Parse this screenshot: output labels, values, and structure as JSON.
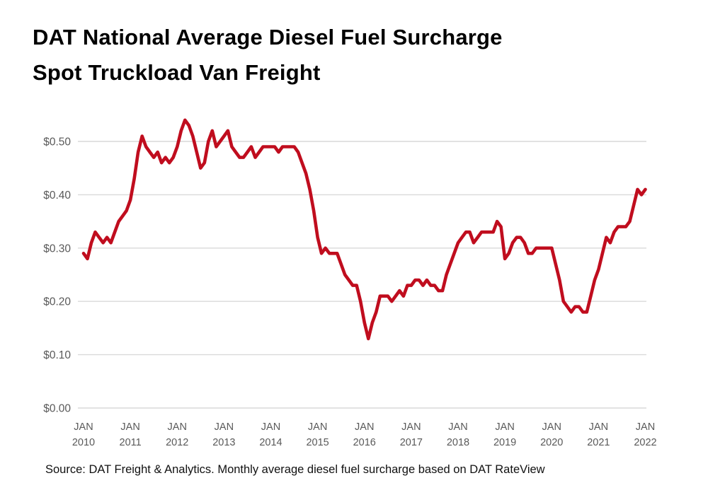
{
  "title": {
    "line1": "DAT National Average Diesel Fuel Surcharge",
    "line2": "Spot Truckload Van Freight"
  },
  "source_note": "Source: DAT Freight & Analytics. Monthly average diesel fuel surcharge based on DAT RateView",
  "colors": {
    "line": "#c00d1e",
    "grid": "#d9d9d9",
    "axis_text": "#595959",
    "title_text": "#000000",
    "background": "#ffffff"
  },
  "chart_data": {
    "type": "line",
    "title": "DAT National Average Diesel Fuel Surcharge Spot Truckload Van Freight",
    "xlabel": "",
    "ylabel": "",
    "grid": true,
    "legend": "none",
    "ylim": [
      0.0,
      0.55
    ],
    "y_ticks": [
      0.0,
      0.1,
      0.2,
      0.3,
      0.4,
      0.5
    ],
    "y_tick_labels": [
      "$0.00",
      "$0.10",
      "$0.20",
      "$0.30",
      "$0.40",
      "$0.50"
    ],
    "x_tick_month_label": "JAN",
    "x_tick_years": [
      "2010",
      "2011",
      "2012",
      "2013",
      "2014",
      "2015",
      "2016",
      "2017",
      "2018",
      "2019",
      "2020",
      "2021",
      "2022"
    ],
    "x_range": [
      "JAN 2010",
      "JAN 2022"
    ],
    "frequency": "monthly",
    "values_monthly": [
      0.29,
      0.28,
      0.31,
      0.33,
      0.32,
      0.31,
      0.32,
      0.31,
      0.33,
      0.35,
      0.36,
      0.37,
      0.39,
      0.43,
      0.48,
      0.51,
      0.49,
      0.48,
      0.47,
      0.48,
      0.46,
      0.47,
      0.46,
      0.47,
      0.49,
      0.52,
      0.54,
      0.53,
      0.51,
      0.48,
      0.45,
      0.46,
      0.5,
      0.52,
      0.49,
      0.5,
      0.51,
      0.52,
      0.49,
      0.48,
      0.47,
      0.47,
      0.48,
      0.49,
      0.47,
      0.48,
      0.49,
      0.49,
      0.49,
      0.49,
      0.48,
      0.49,
      0.49,
      0.49,
      0.49,
      0.48,
      0.46,
      0.44,
      0.41,
      0.37,
      0.32,
      0.29,
      0.3,
      0.29,
      0.29,
      0.29,
      0.27,
      0.25,
      0.24,
      0.23,
      0.23,
      0.2,
      0.16,
      0.13,
      0.16,
      0.18,
      0.21,
      0.21,
      0.21,
      0.2,
      0.21,
      0.22,
      0.21,
      0.23,
      0.23,
      0.24,
      0.24,
      0.23,
      0.24,
      0.23,
      0.23,
      0.22,
      0.22,
      0.25,
      0.27,
      0.29,
      0.31,
      0.32,
      0.33,
      0.33,
      0.31,
      0.32,
      0.33,
      0.33,
      0.33,
      0.33,
      0.35,
      0.34,
      0.28,
      0.29,
      0.31,
      0.32,
      0.32,
      0.31,
      0.29,
      0.29,
      0.3,
      0.3,
      0.3,
      0.3,
      0.3,
      0.27,
      0.24,
      0.2,
      0.19,
      0.18,
      0.19,
      0.19,
      0.18,
      0.18,
      0.21,
      0.24,
      0.26,
      0.29,
      0.32,
      0.31,
      0.33,
      0.34,
      0.34,
      0.34,
      0.35,
      0.38,
      0.41,
      0.4,
      0.41
    ]
  }
}
